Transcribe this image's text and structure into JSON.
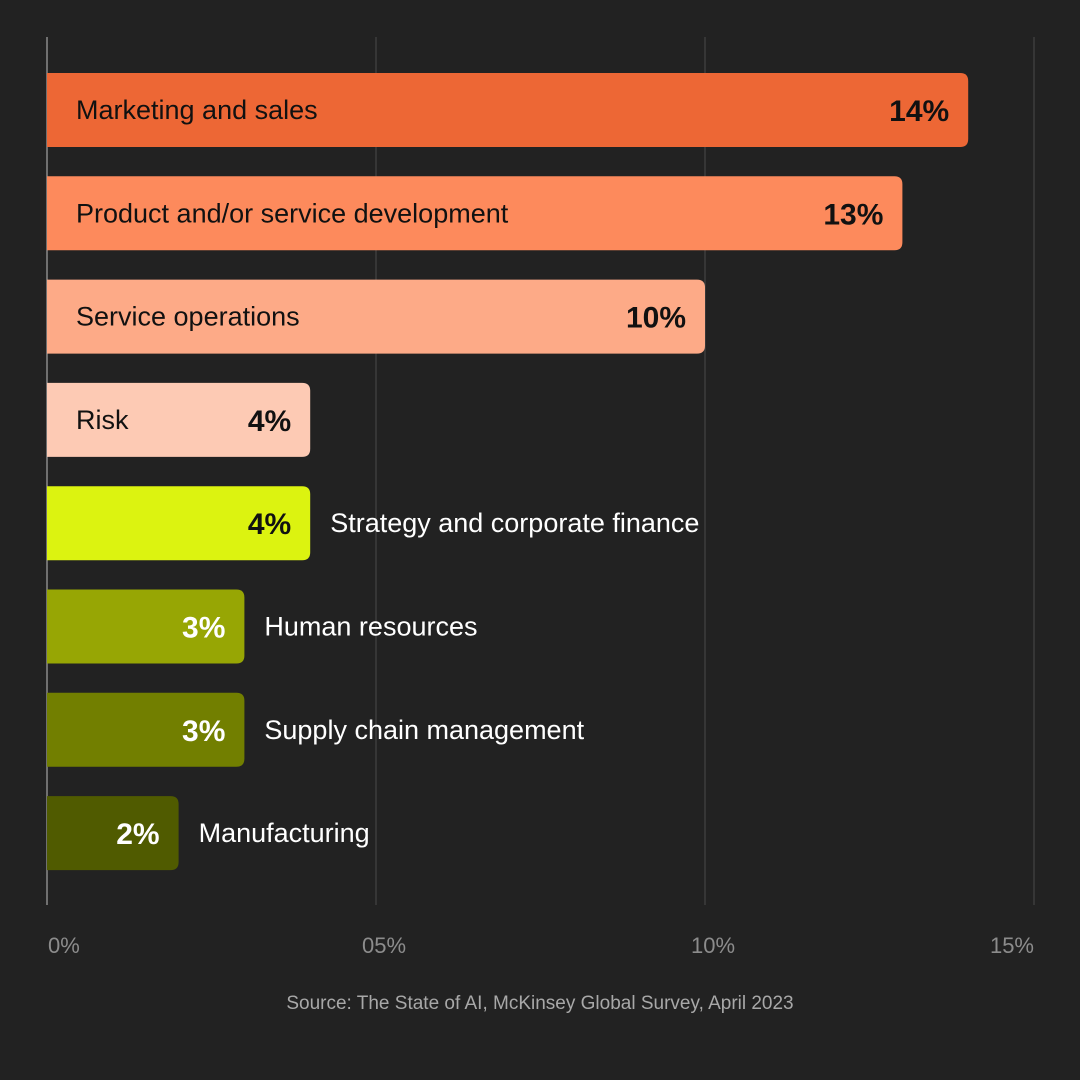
{
  "chart_data": {
    "type": "bar",
    "orientation": "horizontal",
    "categories": [
      "Marketing and sales",
      "Product and/or service development",
      "Service operations",
      "Risk",
      "Strategy and corporate finance",
      "Human resources",
      "Supply chain management",
      "Manufacturing"
    ],
    "values": [
      14,
      13,
      10,
      4,
      4,
      3,
      3,
      2
    ],
    "value_labels": [
      "14%",
      "13%",
      "10%",
      "4%",
      "4%",
      "3%",
      "3%",
      "2%"
    ],
    "bar_colors": [
      "#ed6735",
      "#fd8a5c",
      "#fdaa87",
      "#fdcab4",
      "#dcf310",
      "#97a604",
      "#727f00",
      "#505b00"
    ],
    "value_text_colors": [
      "#111111",
      "#111111",
      "#111111",
      "#111111",
      "#111111",
      "#ffffff",
      "#ffffff",
      "#ffffff"
    ],
    "category_text_colors": [
      "#111111",
      "#111111",
      "#111111",
      "#111111",
      "#ffffff",
      "#ffffff",
      "#ffffff",
      "#ffffff"
    ],
    "xlim": [
      0,
      15
    ],
    "xticks": [
      0,
      5,
      10,
      15
    ],
    "xtick_labels": [
      "0%",
      "05%",
      "10%",
      "15%"
    ],
    "grid": true,
    "background": "#222222",
    "source": "Source: The State of AI, McKinsey Global Survey, April 2023"
  }
}
